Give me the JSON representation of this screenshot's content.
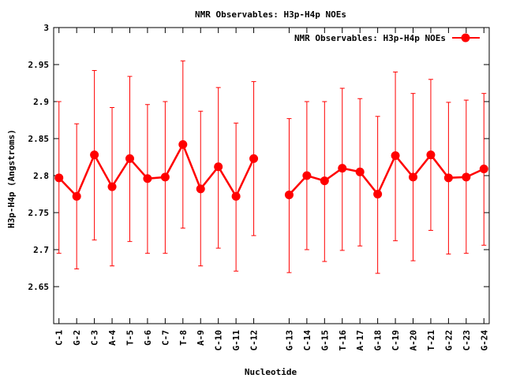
{
  "chart_data": {
    "type": "line",
    "title": "NMR Observables: H3p-H4p NOEs",
    "xlabel": "Nucleotide",
    "ylabel": "H3p-H4p (Angstroms)",
    "ylim": [
      2.6,
      3.0
    ],
    "yticks": [
      "2.65",
      "2.7",
      "2.75",
      "2.8",
      "2.85",
      "2.9",
      "2.95",
      "3"
    ],
    "grid": false,
    "legend": "top-right",
    "series": [
      {
        "name": "NMR Observables: H3p-H4p NOEs",
        "color": "#ff0000",
        "segments": [
          {
            "x": [
              1,
              2,
              3,
              4,
              5,
              6,
              7,
              8,
              9,
              10,
              11,
              12
            ],
            "labels": [
              "C-1",
              "G-2",
              "C-3",
              "A-4",
              "T-5",
              "G-6",
              "C-7",
              "T-8",
              "A-9",
              "C-10",
              "G-11",
              "C-12"
            ],
            "y": [
              2.797,
              2.772,
              2.828,
              2.785,
              2.823,
              2.796,
              2.798,
              2.842,
              2.782,
              2.812,
              2.772,
              2.823
            ],
            "y_low": [
              2.695,
              2.674,
              2.713,
              2.678,
              2.711,
              2.695,
              2.695,
              2.729,
              2.678,
              2.702,
              2.671,
              2.719
            ],
            "y_high": [
              2.9,
              2.87,
              2.942,
              2.892,
              2.934,
              2.896,
              2.9,
              2.955,
              2.887,
              2.919,
              2.871,
              2.927
            ]
          },
          {
            "x": [
              14,
              15,
              16,
              17,
              18,
              19,
              20,
              21,
              22,
              23,
              24,
              25
            ],
            "labels": [
              "G-13",
              "C-14",
              "G-15",
              "T-16",
              "A-17",
              "G-18",
              "C-19",
              "A-20",
              "T-21",
              "G-22",
              "C-23",
              "G-24"
            ],
            "y": [
              2.774,
              2.8,
              2.793,
              2.81,
              2.805,
              2.775,
              2.827,
              2.798,
              2.828,
              2.797,
              2.798,
              2.809
            ],
            "y_low": [
              2.669,
              2.7,
              2.684,
              2.699,
              2.705,
              2.668,
              2.712,
              2.685,
              2.726,
              2.694,
              2.695,
              2.706
            ],
            "y_high": [
              2.877,
              2.9,
              2.9,
              2.918,
              2.904,
              2.88,
              2.94,
              2.911,
              2.93,
              2.899,
              2.902,
              2.911
            ]
          }
        ]
      }
    ]
  }
}
